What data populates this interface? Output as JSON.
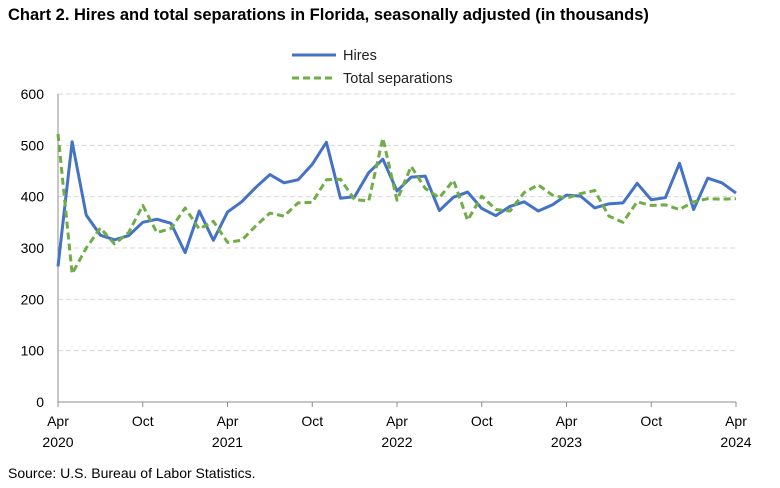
{
  "title": "Chart 2. Hires and total separations in Florida, seasonally adjusted (in thousands)",
  "source": "Source: U.S. Bureau of Labor Statistics.",
  "chart_data": {
    "type": "line",
    "title": "Chart 2. Hires and total separations in Florida, seasonally adjusted (in thousands)",
    "xlabel": "",
    "ylabel": "",
    "ylim": [
      0,
      600
    ],
    "yticks": [
      0,
      100,
      200,
      300,
      400,
      500,
      600
    ],
    "grid": true,
    "legend_placement": "top-center",
    "x_start": "2020-04",
    "x_end": "2024-04",
    "x_tick_labels": [
      {
        "month": "Apr",
        "year": "2020",
        "x": "2020-04"
      },
      {
        "month": "Oct",
        "year": "",
        "x": "2020-10"
      },
      {
        "month": "Apr",
        "year": "2021",
        "x": "2021-04"
      },
      {
        "month": "Oct",
        "year": "",
        "x": "2021-10"
      },
      {
        "month": "Apr",
        "year": "2022",
        "x": "2022-04"
      },
      {
        "month": "Oct",
        "year": "",
        "x": "2022-10"
      },
      {
        "month": "Apr",
        "year": "2023",
        "x": "2023-04"
      },
      {
        "month": "Oct",
        "year": "",
        "x": "2023-10"
      },
      {
        "month": "Apr",
        "year": "2024",
        "x": "2024-04"
      }
    ],
    "x": [
      "2020-04",
      "2020-05",
      "2020-06",
      "2020-07",
      "2020-08",
      "2020-09",
      "2020-10",
      "2020-11",
      "2020-12",
      "2021-01",
      "2021-02",
      "2021-03",
      "2021-04",
      "2021-05",
      "2021-06",
      "2021-07",
      "2021-08",
      "2021-09",
      "2021-10",
      "2021-11",
      "2021-12",
      "2022-01",
      "2022-02",
      "2022-03",
      "2022-04",
      "2022-05",
      "2022-06",
      "2022-07",
      "2022-08",
      "2022-09",
      "2022-10",
      "2022-11",
      "2022-12",
      "2023-01",
      "2023-02",
      "2023-03",
      "2023-04",
      "2023-05",
      "2023-06",
      "2023-07",
      "2023-08",
      "2023-09",
      "2023-10",
      "2023-11",
      "2023-12",
      "2024-01",
      "2024-02",
      "2024-03",
      "2024-04"
    ],
    "series": [
      {
        "name": "Hires",
        "color": "#4472C4",
        "style": "solid",
        "values": [
          264,
          507,
          364,
          325,
          316,
          324,
          350,
          356,
          348,
          291,
          372,
          315,
          370,
          390,
          418,
          443,
          427,
          433,
          463,
          506,
          397,
          400,
          447,
          473,
          411,
          438,
          440,
          373,
          399,
          409,
          377,
          363,
          381,
          390,
          372,
          384,
          403,
          401,
          378,
          386,
          388,
          426,
          394,
          398,
          465,
          375,
          436,
          427,
          407
        ]
      },
      {
        "name": "Total separations",
        "color": "#70AD47",
        "style": "dashed",
        "values": [
          522,
          250,
          300,
          339,
          308,
          330,
          383,
          330,
          338,
          378,
          337,
          352,
          311,
          315,
          343,
          368,
          362,
          388,
          389,
          433,
          434,
          394,
          392,
          514,
          393,
          459,
          416,
          398,
          432,
          354,
          401,
          375,
          372,
          408,
          423,
          403,
          397,
          406,
          412,
          362,
          350,
          390,
          383,
          384,
          375,
          390,
          396,
          395,
          396
        ]
      }
    ]
  }
}
